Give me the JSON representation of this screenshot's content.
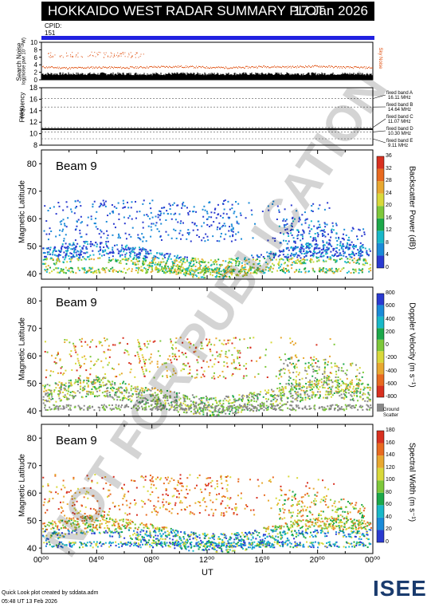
{
  "header": {
    "title": "HOKKAIDO WEST RADAR SUMMARY PLOT",
    "date": "17 Jan 2026",
    "cpid_label": "CPID:",
    "cpid_value": "151"
  },
  "colors": {
    "cpid_bar": "#2020e0",
    "sky_noise": "#e05010",
    "search_noise": "#000000"
  },
  "noise_panel": {
    "ylabel_line1": "Search Noise",
    "ylabel_line2": "log(noise pwr 10⁻¹³W)",
    "legend": "Sky Noise",
    "yticks": [
      "10",
      "8",
      "6",
      "4",
      "2",
      "0"
    ]
  },
  "freq_panel": {
    "ylabel": "Frequency",
    "yunit": "(MHz)",
    "yticks": [
      "18",
      "16",
      "14",
      "12",
      "10",
      "8"
    ],
    "bands": [
      {
        "label": "fixed band A",
        "freq": "16.11 MHz"
      },
      {
        "label": "fixed band B",
        "freq": "14.64 MHz"
      },
      {
        "label": "fixed band C",
        "freq": "11.07 MHz"
      },
      {
        "label": "fixed band D",
        "freq": "10.30 MHz"
      },
      {
        "label": "fixed band E",
        "freq": "9.11 MHz"
      }
    ]
  },
  "panels": [
    {
      "beam": "Beam  9",
      "ylabel": "Magnetic Latitude",
      "cbar_label": "Backscatter Power (dB)",
      "cbar_ticks": [
        "36",
        "32",
        "28",
        "24",
        "20",
        "16",
        "12",
        "8",
        "4",
        "0"
      ]
    },
    {
      "beam": "Beam  9",
      "ylabel": "Magnetic Latitude",
      "cbar_label": "Doppler Velocity (m s⁻¹)",
      "cbar_ticks": [
        "800",
        "600",
        "400",
        "200",
        "0",
        "-200",
        "-400",
        "-600",
        "-800"
      ],
      "ground_label": "Ground",
      "ground_label2": "Scatter"
    },
    {
      "beam": "Beam  9",
      "ylabel": "Magnetic Latitude",
      "cbar_label": "Spectral Width (m s⁻¹)",
      "cbar_ticks": [
        "180",
        "160",
        "140",
        "120",
        "100",
        "80",
        "60",
        "40",
        "20",
        "0"
      ]
    }
  ],
  "xaxis": {
    "label": "UT",
    "ticks": [
      "00⁰⁰",
      "04⁰⁰",
      "08⁰⁰",
      "12⁰⁰",
      "16⁰⁰",
      "20⁰⁰",
      "00⁰⁰"
    ]
  },
  "footer": {
    "line1": "Quick Look plot created by sddata.adm",
    "line2": "05:48 UT 13 Feb 2026"
  },
  "logo": "ISEE",
  "watermark": "NOT FOR PUBLICATION",
  "chart_data": [
    {
      "type": "line",
      "title": "Search Noise",
      "series": [
        {
          "name": "Sky Noise",
          "values": [
            3.5,
            3.2,
            3.4,
            3.3,
            3.5,
            3.6,
            3.4,
            3.3,
            3.6,
            3.5,
            3.7,
            3.4,
            3.3
          ]
        }
      ],
      "ylim": [
        0,
        10
      ]
    },
    {
      "type": "line",
      "title": "Frequency",
      "ylim": [
        8,
        18
      ],
      "x": [
        "00:00",
        "04:00",
        "08:00",
        "12:00",
        "16:00",
        "20:00",
        "24:00"
      ],
      "series": [
        {
          "values": [
            10.8,
            10.8,
            10.8,
            10.8,
            10.8,
            10.8,
            10.8
          ]
        }
      ]
    },
    {
      "type": "heatmap",
      "ylim": [
        38,
        85
      ],
      "xlim": [
        0,
        24
      ],
      "value": "Backscatter Power (dB)",
      "crange": [
        0,
        36
      ]
    },
    {
      "type": "heatmap",
      "ylim": [
        38,
        85
      ],
      "xlim": [
        0,
        24
      ],
      "value": "Doppler Velocity",
      "crange": [
        -800,
        800
      ]
    },
    {
      "type": "heatmap",
      "ylim": [
        38,
        85
      ],
      "xlim": [
        0,
        24
      ],
      "value": "Spectral Width",
      "crange": [
        0,
        180
      ]
    }
  ]
}
